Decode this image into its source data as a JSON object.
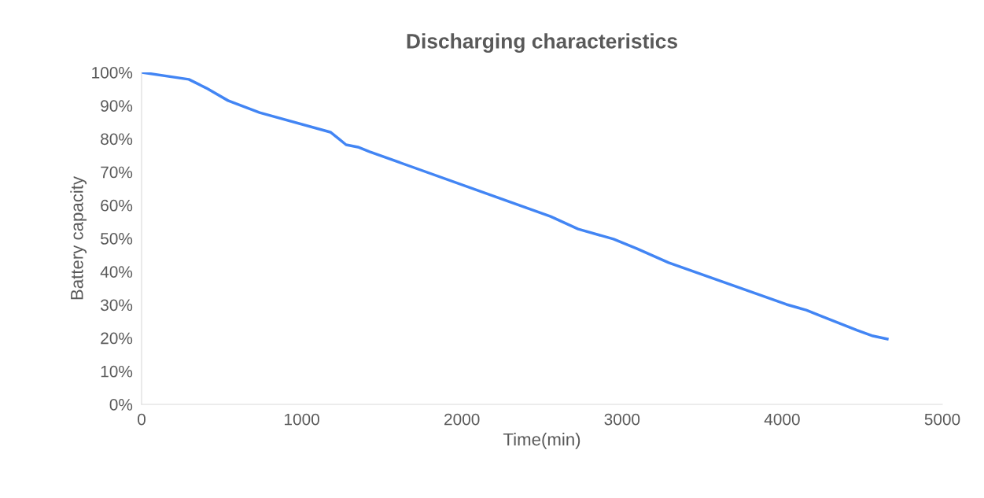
{
  "chart_data": {
    "type": "line",
    "title": "Discharging characteristics",
    "xlabel": "Time(min)",
    "ylabel": "Battery capacity",
    "x": [
      0,
      295,
      403,
      540,
      737,
      1179,
      1228,
      1277,
      1351,
      1424,
      2554,
      2726,
      2947,
      3094,
      3291,
      4027,
      4150,
      4248,
      4469,
      4567,
      4656
    ],
    "series": [
      {
        "color": "#4285f4",
        "values": [
          100,
          97.9,
          95.3,
          91.5,
          87.9,
          82.0,
          80.1,
          78.2,
          77.5,
          76.1,
          56.6,
          52.8,
          49.8,
          46.9,
          42.7,
          30.1,
          28.4,
          26.5,
          22.3,
          20.6,
          19.7
        ]
      }
    ],
    "xlim": [
      0,
      5000
    ],
    "xticks": [
      0,
      1000,
      2000,
      3000,
      4000,
      5000
    ],
    "ylim": [
      0,
      100
    ],
    "yticks": [
      {
        "value": 0,
        "label": "0%"
      },
      {
        "value": 10,
        "label": "10%"
      },
      {
        "value": 20,
        "label": "20%"
      },
      {
        "value": 30,
        "label": "30%"
      },
      {
        "value": 40,
        "label": "40%"
      },
      {
        "value": 50,
        "label": "50%"
      },
      {
        "value": 60,
        "label": "60%"
      },
      {
        "value": 70,
        "label": "70%"
      },
      {
        "value": 80,
        "label": "80%"
      },
      {
        "value": 90,
        "label": "90%"
      },
      {
        "value": 100,
        "label": "100%"
      }
    ],
    "grid": false,
    "marker": "none",
    "line_style": "solid"
  }
}
